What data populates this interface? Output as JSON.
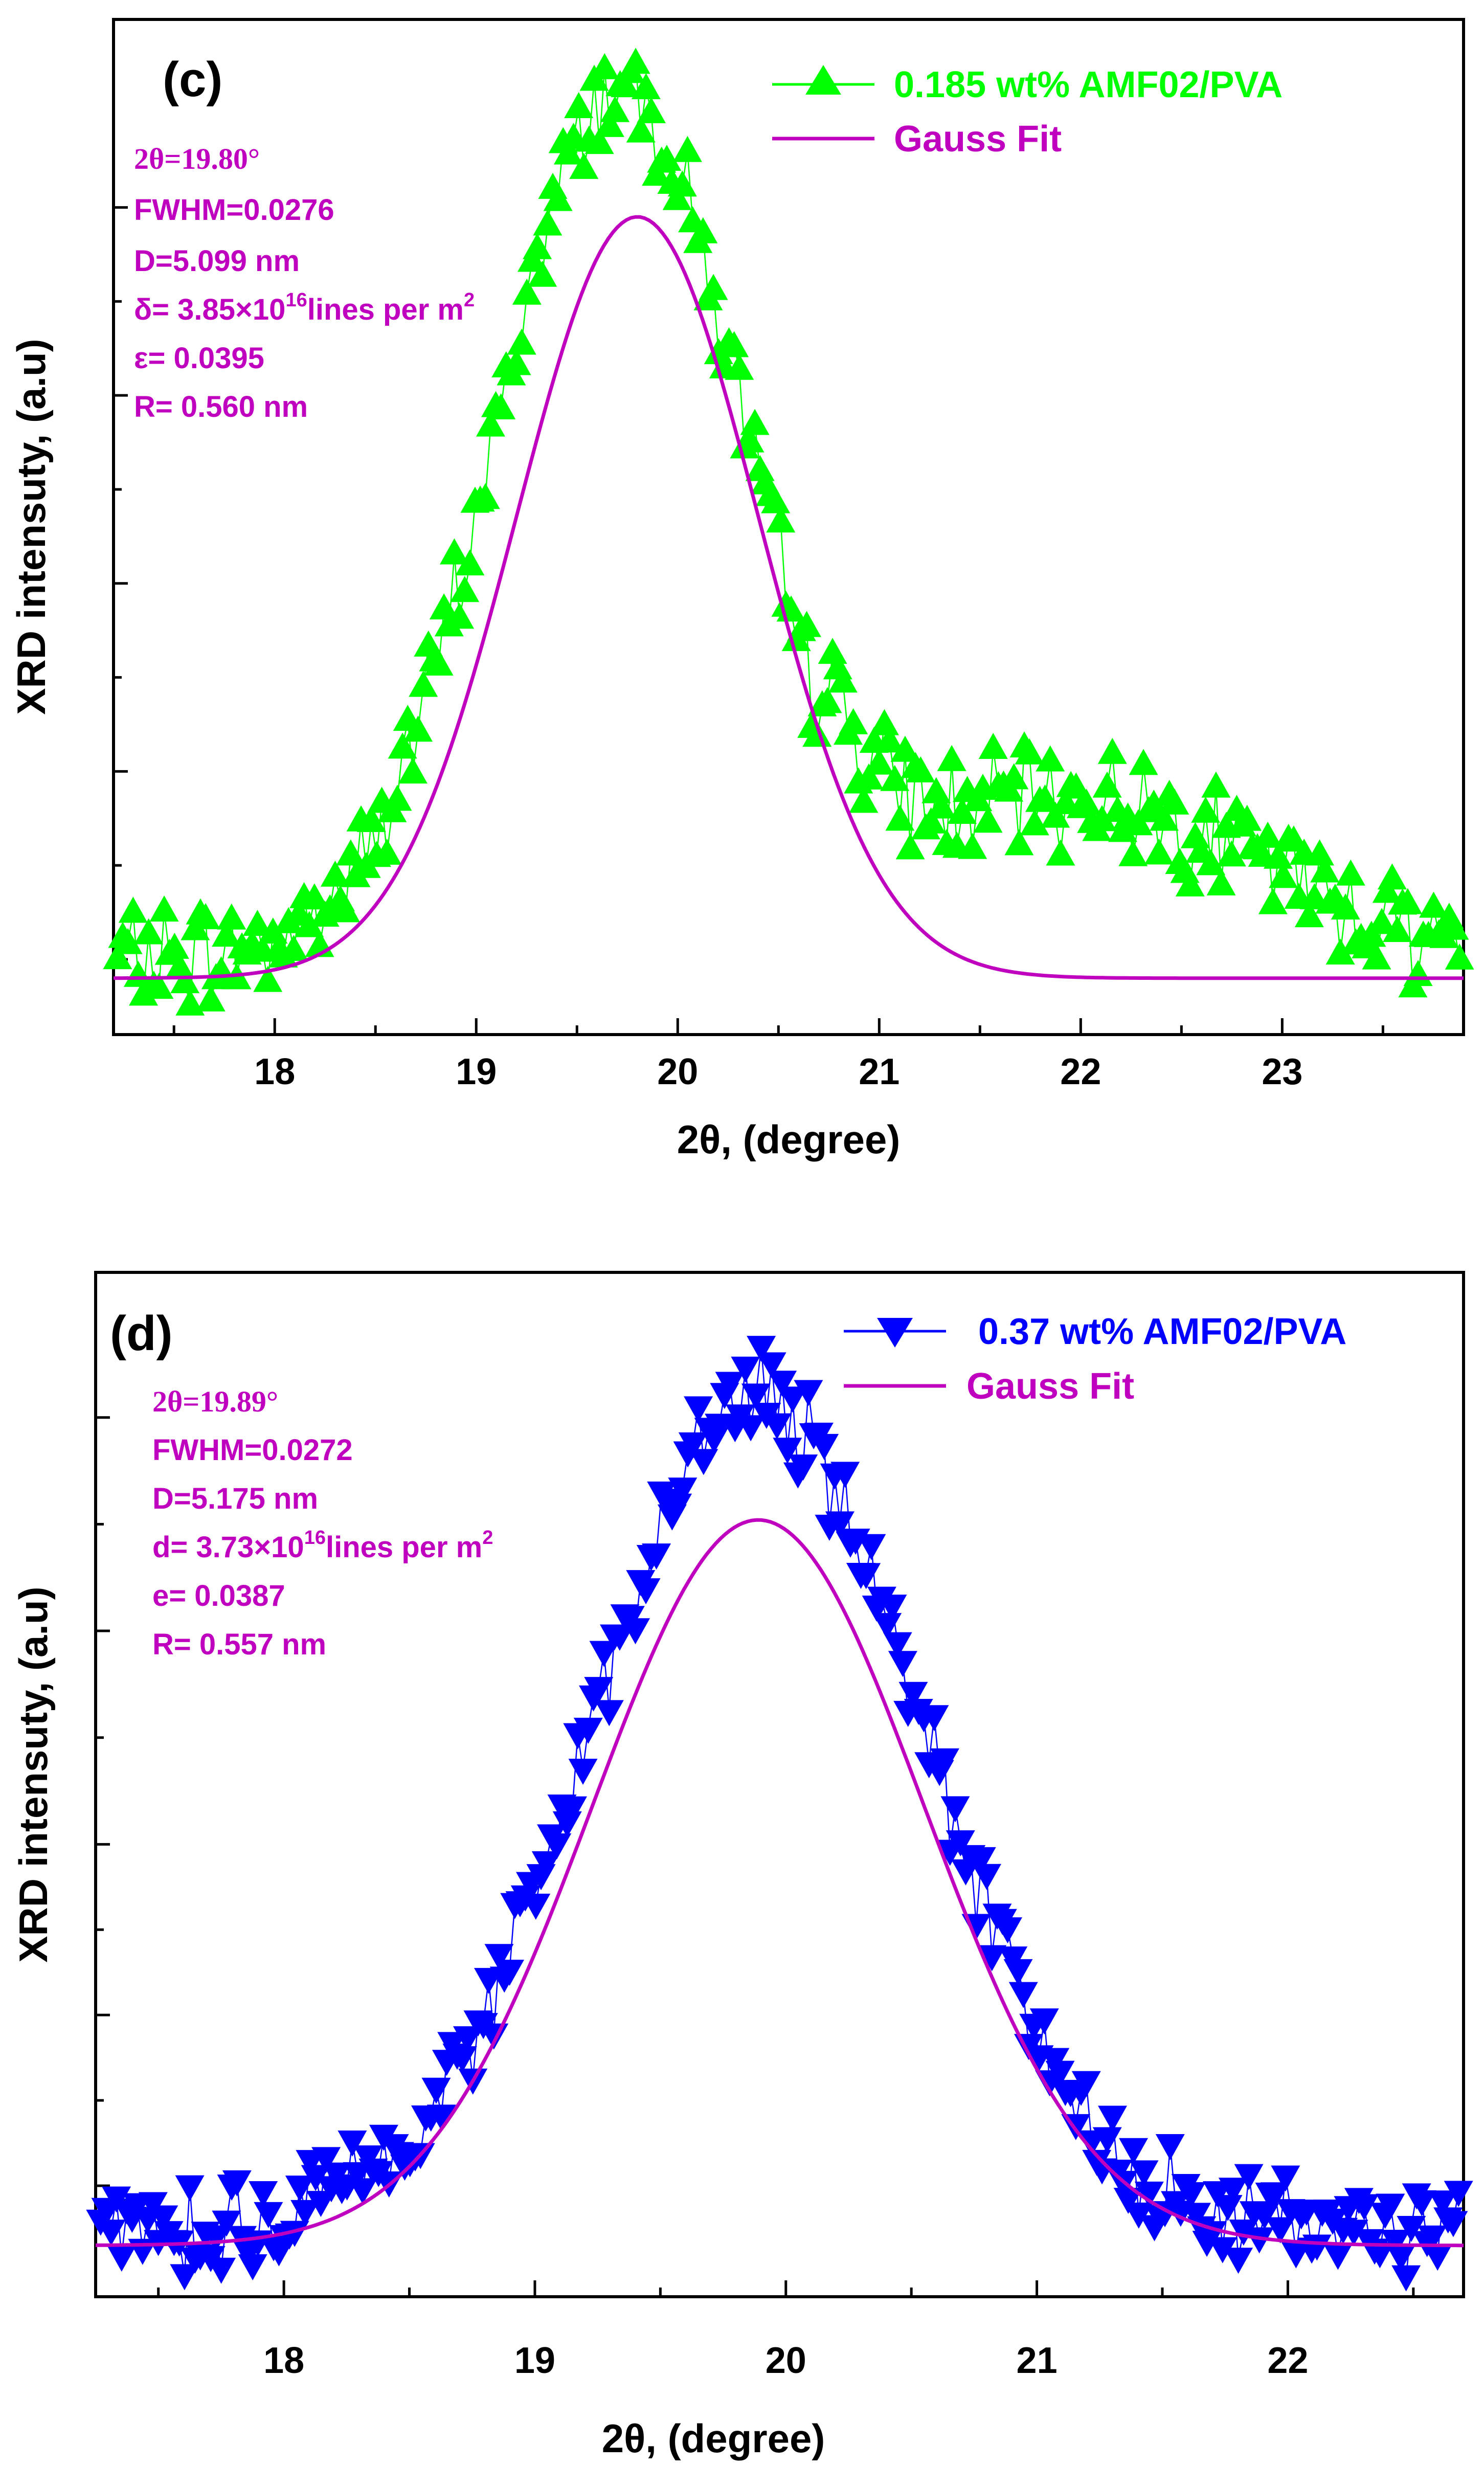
{
  "chart_data": [
    {
      "type": "scatter",
      "panel_label": "(c)",
      "xlabel": "2θ, (degree)",
      "ylabel": "XRD intensuty, (a.u)",
      "xlim": [
        17.2,
        23.9
      ],
      "ylim": [
        -0.08,
        1.0
      ],
      "xticks": [
        "18",
        "19",
        "20",
        "21",
        "22",
        "23"
      ],
      "series": [
        {
          "name": "0.185 wt% AMF02/PVA",
          "color": "#00ff00",
          "marker": "triangle-up",
          "model": "peak-shoulder",
          "center": 19.72,
          "sigma": 0.62,
          "amplitude": 0.93,
          "baseline": 0.0
        },
        {
          "name": "Gauss Fit",
          "color": "#bf00bf",
          "model": "gauss",
          "center": 19.8,
          "sigma": 0.6,
          "amplitude": 0.81,
          "baseline": -0.02
        }
      ],
      "annotations": {
        "line1": "2θ=19.80°",
        "line2": "FWHM=0.0276",
        "line3": "D=5.099 nm",
        "line4_pre": "δ= 3.85×10",
        "line4_sup": "16",
        "line4_post": "lines per m",
        "line4_sup2": "2",
        "line5": "ε= 0.0395",
        "line6": "R= 0.560 nm"
      },
      "colors": {
        "data": "#00ff00",
        "fit": "#bf00bf"
      }
    },
    {
      "type": "scatter",
      "panel_label": "(d)",
      "xlabel": "2θ, (degree)",
      "ylabel": "XRD intensuty, (a.u)",
      "xlim": [
        17.25,
        22.7
      ],
      "ylim": [
        -0.08,
        1.12
      ],
      "xticks": [
        "18",
        "19",
        "20",
        "21",
        "22"
      ],
      "series": [
        {
          "name": "0.37 wt% AMF02/PVA",
          "color": "#0000ff",
          "marker": "triangle-down",
          "model": "gauss",
          "center": 19.88,
          "sigma": 0.66,
          "amplitude": 0.97,
          "baseline": 0.0
        },
        {
          "name": "Gauss Fit",
          "color": "#bf00bf",
          "model": "gauss",
          "center": 19.89,
          "sigma": 0.66,
          "amplitude": 0.85,
          "baseline": -0.02
        }
      ],
      "annotations": {
        "line1": "2θ=19.89°",
        "line2": "FWHM=0.0272",
        "line3": "D=5.175 nm",
        "line4_pre": "d= 3.73×10",
        "line4_sup": "16",
        "line4_post": "lines per m",
        "line4_sup2": "2",
        "line5": "e= 0.0387",
        "line6": "R= 0.557 nm"
      },
      "colors": {
        "data": "#0000ff",
        "fit": "#bf00bf"
      }
    }
  ]
}
